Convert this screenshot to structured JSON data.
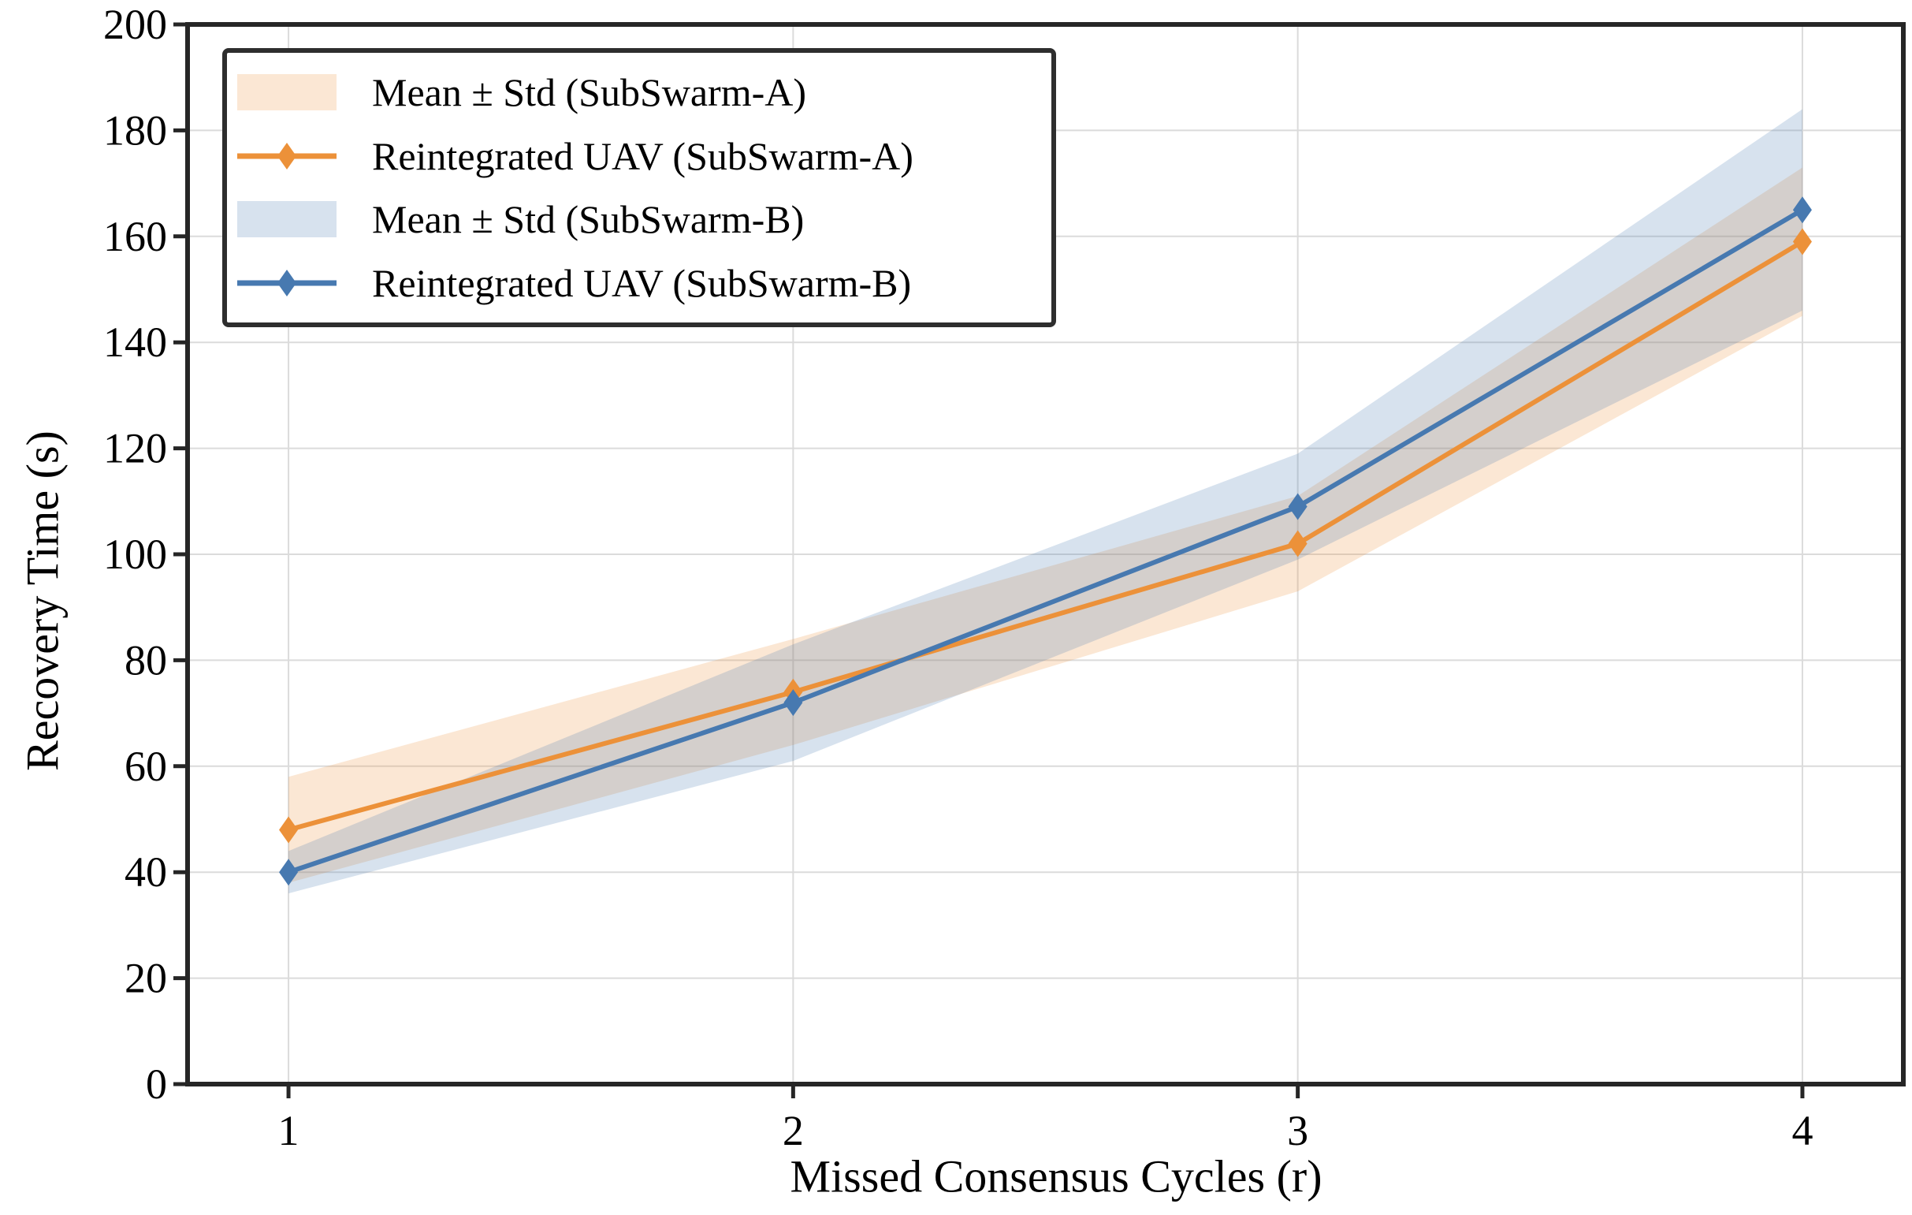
{
  "chart_data": {
    "type": "line",
    "x": [
      1,
      2,
      3,
      4
    ],
    "series": [
      {
        "name": "Reintegrated UAV (SubSwarm-A)",
        "band_name": "Mean ± Std (SubSwarm-A)",
        "color": "#EC9139",
        "means": [
          48,
          74,
          102,
          159
        ],
        "stds": [
          10,
          10,
          9,
          14
        ]
      },
      {
        "name": "Reintegrated UAV (SubSwarm-B)",
        "band_name": "Mean ± Std (SubSwarm-B)",
        "color": "#4779B0",
        "means": [
          40,
          72,
          109,
          165
        ],
        "stds": [
          4,
          11,
          10,
          19
        ]
      }
    ],
    "title": "",
    "xlabel": "Missed Consensus Cycles (r)",
    "ylabel": "Recovery Time (s)",
    "xlim": [
      0.8,
      4.2
    ],
    "ylim": [
      0,
      200
    ],
    "xticks": [
      1,
      2,
      3,
      4
    ],
    "yticks": [
      0,
      20,
      40,
      60,
      80,
      100,
      120,
      140,
      160,
      180,
      200
    ],
    "grid": true,
    "grid_color": "#dbdbdb",
    "band_opacity": 0.22,
    "marker": "thin-diamond",
    "legend_position": "upper-left",
    "spine_color": "#262626"
  }
}
